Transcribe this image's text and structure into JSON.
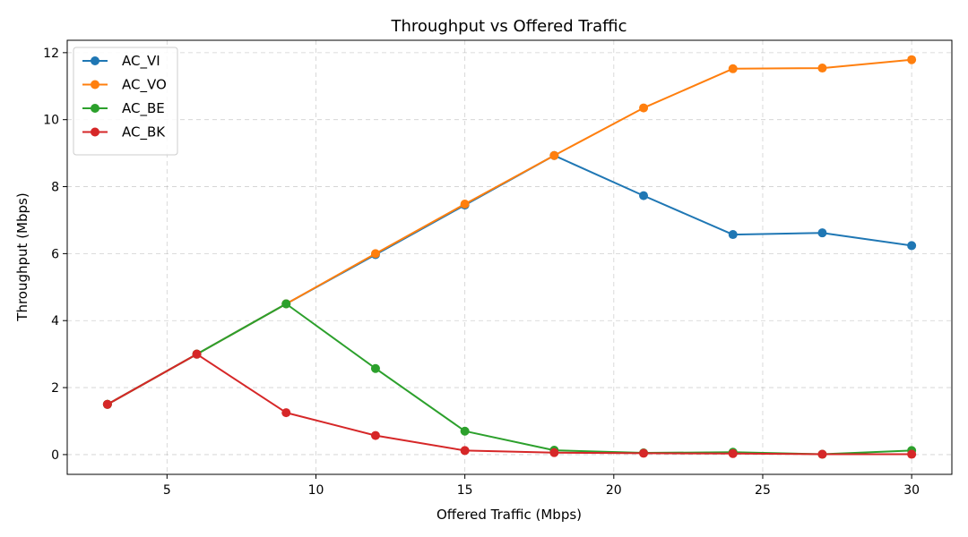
{
  "chart_data": {
    "type": "line",
    "title": "Throughput vs Offered Traffic",
    "xlabel": "Offered Traffic (Mbps)",
    "ylabel": "Throughput (Mbps)",
    "x": [
      3,
      6,
      9,
      12,
      15,
      18,
      21,
      24,
      27,
      30
    ],
    "xlim": [
      1.65,
      31.35
    ],
    "ylim": [
      -0.59,
      12.37
    ],
    "xticks": [
      5,
      10,
      15,
      20,
      25,
      30
    ],
    "yticks": [
      0,
      2,
      4,
      6,
      8,
      10,
      12
    ],
    "grid": true,
    "legend_position": "top-left",
    "series": [
      {
        "name": "AC_VI",
        "color": "#1f77b4",
        "values": [
          1.5,
          3.0,
          4.5,
          5.97,
          7.45,
          8.93,
          7.73,
          6.57,
          6.62,
          6.24
        ]
      },
      {
        "name": "AC_VO",
        "color": "#ff7f0e",
        "values": [
          1.5,
          3.0,
          4.5,
          6.0,
          7.48,
          8.93,
          10.35,
          11.52,
          11.54,
          11.79
        ]
      },
      {
        "name": "AC_BE",
        "color": "#2ca02c",
        "values": [
          1.5,
          3.0,
          4.5,
          2.57,
          0.7,
          0.13,
          0.05,
          0.07,
          0.01,
          0.12
        ]
      },
      {
        "name": "AC_BK",
        "color": "#d62728",
        "values": [
          1.5,
          3.0,
          1.25,
          0.57,
          0.12,
          0.06,
          0.04,
          0.03,
          0.01,
          0.01
        ]
      }
    ]
  }
}
